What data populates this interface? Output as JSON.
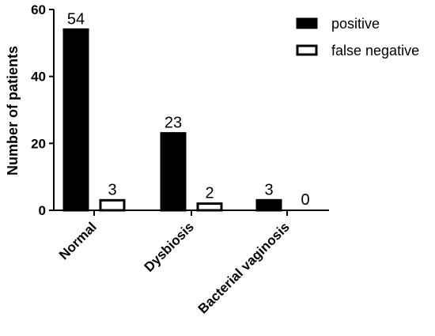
{
  "chart_data": {
    "type": "bar",
    "categories": [
      "Normal",
      "Dysbiosis",
      "Bacterial vaginosis"
    ],
    "series": [
      {
        "name": "positive",
        "values": [
          54,
          23,
          3
        ],
        "fill": "#000000"
      },
      {
        "name": "false negative",
        "values": [
          3,
          2,
          0
        ],
        "fill": "#ffffff"
      }
    ],
    "ylabel": "Number of patients",
    "xlabel": "",
    "ylim": [
      0,
      60
    ],
    "yticks": [
      0,
      20,
      40,
      60
    ],
    "grid": false,
    "legend_position": "top-right"
  }
}
